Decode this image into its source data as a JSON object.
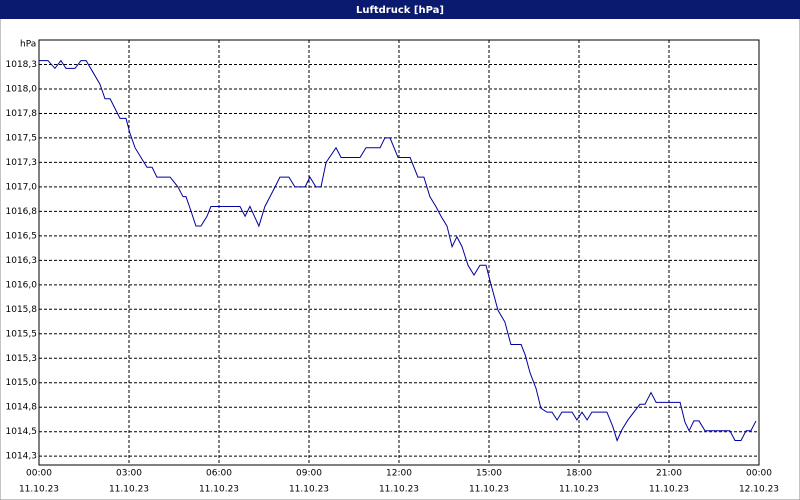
{
  "chart_data": {
    "type": "line",
    "title": "Luftdruck [hPa]",
    "y_label": "hPa",
    "x": [
      0,
      0.3,
      0.53,
      0.73,
      0.9,
      1.2,
      1.4,
      1.57,
      1.8,
      2.03,
      2.2,
      2.37,
      2.7,
      2.9,
      3.03,
      3.2,
      3.4,
      3.6,
      3.77,
      3.93,
      4.37,
      4.63,
      4.8,
      4.9,
      5.07,
      5.23,
      5.4,
      5.6,
      5.73,
      6.7,
      6.87,
      7.03,
      7.33,
      7.53,
      7.87,
      8.03,
      8.33,
      8.53,
      8.87,
      9.03,
      9.23,
      9.4,
      9.57,
      9.9,
      10.07,
      10.7,
      10.9,
      11.37,
      11.53,
      11.7,
      11.97,
      12.37,
      12.63,
      12.83,
      13.03,
      13.23,
      13.4,
      13.6,
      13.77,
      13.93,
      14.1,
      14.3,
      14.5,
      14.7,
      14.9,
      15.07,
      15.3,
      15.53,
      15.73,
      16.07,
      16.2,
      16.37,
      16.57,
      16.73,
      16.93,
      17.1,
      17.27,
      17.43,
      17.77,
      17.93,
      18.1,
      18.27,
      18.43,
      18.93,
      19.13,
      19.27,
      19.43,
      19.63,
      20.03,
      20.2,
      20.4,
      20.57,
      21.37,
      21.53,
      21.67,
      21.83,
      22.0,
      22.2,
      23.03,
      23.2,
      23.4,
      23.57,
      23.73,
      23.9
    ],
    "series": [
      {
        "name": "Luftdruck",
        "color": "#0000a0",
        "values": [
          1018.29,
          1018.29,
          1018.21,
          1018.29,
          1018.21,
          1018.21,
          1018.29,
          1018.29,
          1018.17,
          1018.05,
          1017.9,
          1017.9,
          1017.7,
          1017.7,
          1017.55,
          1017.4,
          1017.3,
          1017.2,
          1017.2,
          1017.1,
          1017.1,
          1017.0,
          1016.9,
          1016.9,
          1016.75,
          1016.6,
          1016.6,
          1016.7,
          1016.8,
          1016.8,
          1016.7,
          1016.8,
          1016.6,
          1016.8,
          1017.0,
          1017.1,
          1017.1,
          1017.0,
          1017.0,
          1017.1,
          1017.0,
          1017.0,
          1017.25,
          1017.4,
          1017.3,
          1017.3,
          1017.4,
          1017.4,
          1017.5,
          1017.5,
          1017.3,
          1017.3,
          1017.1,
          1017.1,
          1016.9,
          1016.8,
          1016.7,
          1016.6,
          1016.39,
          1016.49,
          1016.39,
          1016.2,
          1016.1,
          1016.2,
          1016.2,
          1016.0,
          1015.74,
          1015.62,
          1015.39,
          1015.39,
          1015.29,
          1015.1,
          1014.94,
          1014.74,
          1014.7,
          1014.7,
          1014.62,
          1014.7,
          1014.7,
          1014.62,
          1014.7,
          1014.62,
          1014.7,
          1014.7,
          1014.55,
          1014.41,
          1014.52,
          1014.62,
          1014.78,
          1014.78,
          1014.9,
          1014.8,
          1014.8,
          1014.6,
          1014.51,
          1014.61,
          1014.61,
          1014.51,
          1014.51,
          1014.41,
          1014.41,
          1014.51,
          1014.51,
          1014.61
        ]
      }
    ],
    "xlim": [
      0,
      24
    ],
    "xticks": [
      {
        "value": 0,
        "label": "00:00",
        "date": "11.10.23"
      },
      {
        "value": 3,
        "label": "03:00",
        "date": "11.10.23"
      },
      {
        "value": 6,
        "label": "06:00",
        "date": "11.10.23"
      },
      {
        "value": 9,
        "label": "09:00",
        "date": "11.10.23"
      },
      {
        "value": 12,
        "label": "12:00",
        "date": "11.10.23"
      },
      {
        "value": 15,
        "label": "15:00",
        "date": "11.10.23"
      },
      {
        "value": 18,
        "label": "18:00",
        "date": "11.10.23"
      },
      {
        "value": 21,
        "label": "21:00",
        "date": "11.10.23"
      },
      {
        "value": 24,
        "label": "00:00",
        "date": "12.10.23"
      }
    ],
    "ylim": [
      1014.16,
      1018.5
    ],
    "yticks": [
      {
        "value": 1014.25,
        "label": "1014,3"
      },
      {
        "value": 1014.5,
        "label": "1014,5"
      },
      {
        "value": 1014.75,
        "label": "1014,8"
      },
      {
        "value": 1015,
        "label": "1015,0"
      },
      {
        "value": 1015.25,
        "label": "1015,3"
      },
      {
        "value": 1015.5,
        "label": "1015,5"
      },
      {
        "value": 1015.75,
        "label": "1015,8"
      },
      {
        "value": 1016,
        "label": "1016,0"
      },
      {
        "value": 1016.25,
        "label": "1016,3"
      },
      {
        "value": 1016.5,
        "label": "1016,5"
      },
      {
        "value": 1016.75,
        "label": "1016,8"
      },
      {
        "value": 1017,
        "label": "1017,0"
      },
      {
        "value": 1017.25,
        "label": "1017,3"
      },
      {
        "value": 1017.5,
        "label": "1017,5"
      },
      {
        "value": 1017.75,
        "label": "1017,8"
      },
      {
        "value": 1018,
        "label": "1018,0"
      },
      {
        "value": 1018.25,
        "label": "1018,3"
      }
    ],
    "grid": true
  }
}
